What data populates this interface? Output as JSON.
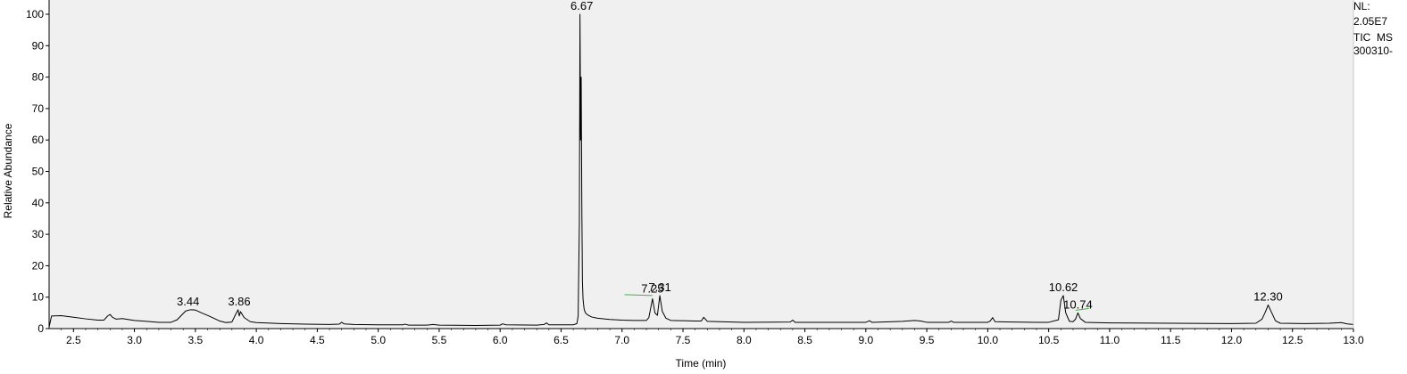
{
  "chart_data": {
    "type": "line",
    "xlabel": "Time (min)",
    "ylabel": "Relative Abundance",
    "xlim": [
      2.3,
      13.0
    ],
    "ylim": [
      0,
      100
    ],
    "x_ticks": [
      "2.5",
      "3.0",
      "3.5",
      "4.0",
      "4.5",
      "5.0",
      "5.5",
      "6.0",
      "6.5",
      "7.0",
      "7.5",
      "8.0",
      "8.5",
      "9.0",
      "9.5",
      "10.0",
      "10.5",
      "11.0",
      "11.5",
      "12.0",
      "12.5",
      "13.0"
    ],
    "y_ticks": [
      "0",
      "10",
      "20",
      "30",
      "40",
      "50",
      "60",
      "70",
      "80",
      "90",
      "100"
    ],
    "grid": false,
    "info": [
      "NL:",
      "2.05E7",
      "TIC  MS",
      "300310-"
    ],
    "peaks": [
      {
        "rt": "3.44",
        "x": 3.44,
        "y": 6.0
      },
      {
        "rt": "3.86",
        "x": 3.86,
        "y": 6.0
      },
      {
        "rt": "6.67",
        "x": 6.67,
        "y": 100
      },
      {
        "rt": "7.25",
        "x": 7.25,
        "y": 10.0
      },
      {
        "rt": "7.31",
        "x": 7.31,
        "y": 10.5
      },
      {
        "rt": "10.62",
        "x": 10.62,
        "y": 10.5
      },
      {
        "rt": "10.74",
        "x": 10.74,
        "y": 5.0
      },
      {
        "rt": "12.30",
        "x": 12.3,
        "y": 7.5
      }
    ],
    "trace": {
      "x": [
        2.3,
        2.32,
        2.4,
        2.5,
        2.6,
        2.7,
        2.75,
        2.78,
        2.8,
        2.82,
        2.85,
        2.9,
        3.0,
        3.1,
        3.2,
        3.3,
        3.35,
        3.38,
        3.42,
        3.46,
        3.5,
        3.55,
        3.6,
        3.65,
        3.7,
        3.75,
        3.8,
        3.83,
        3.85,
        3.86,
        3.87,
        3.9,
        3.95,
        4.0,
        4.2,
        4.4,
        4.6,
        4.68,
        4.7,
        4.72,
        4.8,
        5.0,
        5.2,
        5.22,
        5.25,
        5.4,
        5.45,
        5.5,
        5.8,
        6.0,
        6.02,
        6.05,
        6.3,
        6.36,
        6.38,
        6.4,
        6.6,
        6.63,
        6.64,
        6.65,
        6.655,
        6.66,
        6.665,
        6.67,
        6.675,
        6.68,
        6.685,
        6.69,
        6.7,
        6.72,
        6.75,
        6.8,
        6.9,
        7.0,
        7.1,
        7.2,
        7.22,
        7.25,
        7.27,
        7.29,
        7.31,
        7.33,
        7.36,
        7.4,
        7.5,
        7.6,
        7.65,
        7.67,
        7.7,
        8.0,
        8.38,
        8.4,
        8.42,
        8.8,
        9.0,
        9.03,
        9.05,
        9.3,
        9.4,
        9.45,
        9.5,
        9.68,
        9.7,
        9.72,
        10.0,
        10.02,
        10.04,
        10.06,
        10.2,
        10.4,
        10.5,
        10.58,
        10.6,
        10.62,
        10.64,
        10.67,
        10.7,
        10.72,
        10.74,
        10.76,
        10.8,
        11.0,
        11.5,
        12.0,
        12.2,
        12.25,
        12.28,
        12.3,
        12.33,
        12.36,
        12.4,
        12.6,
        12.8,
        12.9,
        12.95,
        13.0
      ],
      "y": [
        0.5,
        4.0,
        4.1,
        3.6,
        3.1,
        2.7,
        2.7,
        4.0,
        4.5,
        3.6,
        3.0,
        3.2,
        2.6,
        2.3,
        2.0,
        2.0,
        2.8,
        4.0,
        5.6,
        6.0,
        5.9,
        5.0,
        4.2,
        3.3,
        2.4,
        1.9,
        2.1,
        4.5,
        6.0,
        4.0,
        5.4,
        3.5,
        2.2,
        1.9,
        1.6,
        1.4,
        1.3,
        1.4,
        2.0,
        1.5,
        1.3,
        1.2,
        1.2,
        1.4,
        1.1,
        1.1,
        1.3,
        1.1,
        1.0,
        1.1,
        1.5,
        1.2,
        1.1,
        1.3,
        1.8,
        1.2,
        1.2,
        1.6,
        4.0,
        34,
        100,
        60,
        80,
        40,
        15,
        9.5,
        7.5,
        6.0,
        5.0,
        4.3,
        3.7,
        3.3,
        2.9,
        2.7,
        2.6,
        2.6,
        3.5,
        9.5,
        5.0,
        4.2,
        10.5,
        5.5,
        3.3,
        2.6,
        2.5,
        2.4,
        2.4,
        3.6,
        2.3,
        2.0,
        2.1,
        2.7,
        2.0,
        2.0,
        2.0,
        2.5,
        2.0,
        2.3,
        2.6,
        2.4,
        2.0,
        2.0,
        2.4,
        2.0,
        2.0,
        2.4,
        3.5,
        2.2,
        2.1,
        2.0,
        2.0,
        2.8,
        9.0,
        10.5,
        5.0,
        2.3,
        2.2,
        3.0,
        5.0,
        3.2,
        2.0,
        1.8,
        1.7,
        1.6,
        1.7,
        3.0,
        5.5,
        7.5,
        5.0,
        2.5,
        1.7,
        1.6,
        1.7,
        1.9,
        1.5,
        1.3
      ]
    },
    "baselines": [
      {
        "x": [
          7.02,
          7.25
        ],
        "y": [
          10.8,
          10.5
        ]
      },
      {
        "x": [
          10.72,
          10.83
        ],
        "y": [
          5.8,
          6.4
        ]
      }
    ]
  }
}
